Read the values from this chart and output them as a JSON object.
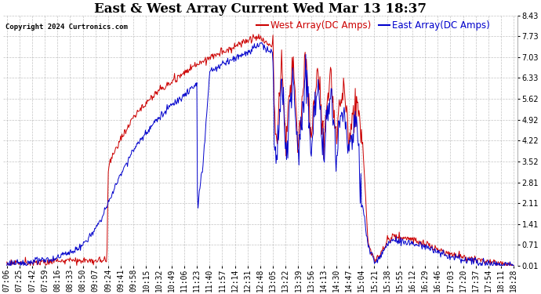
{
  "title": "East & West Array Current Wed Mar 13 18:37",
  "copyright": "Copyright 2024 Curtronics.com",
  "legend_east": "East Array(DC Amps)",
  "legend_west": "West Array(DC Amps)",
  "east_color": "#0000cc",
  "west_color": "#cc0000",
  "background_color": "#ffffff",
  "grid_color": "#aaaaaa",
  "yticks": [
    0.01,
    0.71,
    1.41,
    2.11,
    2.81,
    3.52,
    4.22,
    4.92,
    5.62,
    6.33,
    7.03,
    7.73,
    8.43
  ],
  "xtick_labels": [
    "07:06",
    "07:25",
    "07:42",
    "07:59",
    "08:16",
    "08:33",
    "08:50",
    "09:07",
    "09:24",
    "09:41",
    "09:58",
    "10:15",
    "10:32",
    "10:49",
    "11:06",
    "11:23",
    "11:40",
    "11:57",
    "12:14",
    "12:31",
    "12:48",
    "13:05",
    "13:22",
    "13:39",
    "13:56",
    "14:13",
    "14:30",
    "14:47",
    "15:04",
    "15:21",
    "15:38",
    "15:55",
    "16:12",
    "16:29",
    "16:46",
    "17:03",
    "17:20",
    "17:37",
    "17:54",
    "18:11",
    "18:28"
  ],
  "ylim": [
    0.01,
    8.43
  ],
  "title_fontsize": 12,
  "tick_fontsize": 7,
  "legend_fontsize": 8.5
}
